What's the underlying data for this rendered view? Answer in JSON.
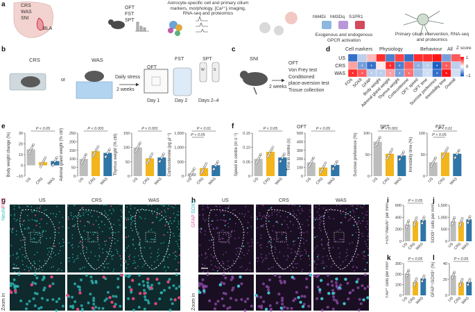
{
  "panel_a": {
    "regions": [
      "CRS",
      "WAS",
      "SNI",
      "BLA"
    ],
    "tests": [
      "OFT",
      "FST",
      "SPT"
    ],
    "mid_text": "Astrocyte-specific cell and primary cilium markers, morphology, [Ca²⁺]ᵢ imaging, RNA-seq and proteomics",
    "receptors": [
      "hM4Di",
      "hM3Dq",
      "S1PR1"
    ],
    "gpcr_text": "Exogenous and endogenous GPCR activation",
    "cilium_text": "Primary cilium intervention, RNA-seq and proteomics"
  },
  "panel_b": {
    "labels": [
      "CRS",
      "WAS",
      "or",
      "Daily stress",
      "2 weeks",
      "OFT",
      "FST",
      "SPT",
      "Day 1",
      "Day 2",
      "Days 2–4",
      "W",
      "S"
    ]
  },
  "panel_c": {
    "label": "SNI",
    "duration": "2 weeks",
    "tests": [
      "OFT",
      "Von Frey test",
      "Conditioned",
      "place-aversion test",
      "Tissue collection"
    ]
  },
  "panel_d": {
    "groups": [
      "Cell markers",
      "Physiology",
      "Behaviour",
      "All"
    ],
    "rows": [
      "US",
      "CRS",
      "WAS"
    ],
    "cols": [
      "FOS",
      "SOX9",
      "GFAP",
      "Body weight",
      "Adrenal gland weight",
      "Thymus weight",
      "Corticosterone",
      "OFT: speed",
      "OFT: time",
      "Sucrose preference",
      "Immobility time",
      "Overall"
    ],
    "scale_title": "Z score",
    "scale_ticks": [
      "1",
      "0",
      "–1"
    ],
    "values": [
      [
        -0.9,
        -0.3,
        0.3,
        0.9,
        -0.8,
        0.8,
        -0.9,
        0.9,
        0.9,
        1.0,
        -0.6,
        0.7
      ],
      [
        0.4,
        -0.6,
        -0.9,
        0.1,
        0.9,
        -0.8,
        0.7,
        -0.5,
        -0.3,
        -1.0,
        0.7,
        -0.3
      ],
      [
        0.9,
        0.7,
        -0.3,
        -0.3,
        0.4,
        -0.6,
        0.6,
        -0.4,
        -0.2,
        -0.9,
        1.0,
        -0.2
      ]
    ],
    "stars": [
      [
        false,
        false,
        false,
        false,
        false,
        false,
        false,
        false,
        false,
        false,
        false,
        false
      ],
      [
        false,
        true,
        true,
        true,
        true,
        true,
        false,
        true,
        true,
        true,
        true,
        false
      ],
      [
        true,
        true,
        true,
        true,
        true,
        true,
        true,
        false,
        true,
        true,
        true,
        false
      ]
    ]
  },
  "panel_e": {
    "charts": [
      {
        "ylabel": "Body weight change (%)",
        "ticks": [
          "30",
          "20",
          "10",
          "0",
          "–10"
        ],
        "p": "P < 0.05",
        "values": [
          15,
          3,
          4
        ],
        "ymax": 30,
        "ymin": -10
      },
      {
        "ylabel": "Adrenal gland weight (% ctrl)",
        "ticks": [
          "250",
          "200",
          "150",
          "100",
          "50",
          "0"
        ],
        "p": "P < 0.001",
        "values": [
          100,
          145,
          135
        ],
        "ymax": 250,
        "ymin": 0
      },
      {
        "ylabel": "Thymus weight (% ctrl)",
        "ticks": [
          "150",
          "100",
          "50",
          "0"
        ],
        "p": "P < 0.001",
        "values": [
          100,
          62,
          65
        ],
        "ymax": 150,
        "ymin": 0
      },
      {
        "ylabel": "Corticosterone (pg µl⁻¹)",
        "ticks": [
          "1,500",
          "1,000",
          "500",
          "0"
        ],
        "p": "P < 0.01",
        "p2": "P < 0.05",
        "values": [
          100,
          280,
          380
        ],
        "ymax": 1500,
        "ymin": 0
      }
    ],
    "groups": [
      "US",
      "CRS",
      "WAS"
    ]
  },
  "panel_f": {
    "title_oft": "OFT",
    "title_spt": "SPT",
    "title_fst": "FST",
    "charts": [
      {
        "ylabel": "Speed in centre (m s⁻¹)",
        "ticks": [
          "0.15",
          "0.10",
          "0.05",
          "0"
        ],
        "p": "P < 0.05",
        "values": [
          0.06,
          0.085,
          0.065
        ],
        "ymax": 0.15,
        "ymin": 0
      },
      {
        "ylabel": "Time in centre (s)",
        "ticks": [
          "500",
          "400",
          "300",
          "200",
          "100",
          "0"
        ],
        "p": "P < 0.05",
        "values": [
          160,
          100,
          130
        ],
        "ymax": 500,
        "ymin": 0
      },
      {
        "ylabel": "Sucrose preference (%)",
        "ticks": [
          "100",
          "50",
          "0"
        ],
        "p": "P < 0.001",
        "values": [
          80,
          52,
          48
        ],
        "ymax": 100,
        "ymin": 0
      },
      {
        "ylabel": "Immobility time (%)",
        "ticks": [
          "100",
          "50",
          "0"
        ],
        "p": "P < 0.01",
        "p2": "P < 0.05",
        "values": [
          32,
          55,
          52
        ],
        "ymax": 100,
        "ymin": 0
      }
    ],
    "groups": [
      "US",
      "CRS",
      "WAS"
    ]
  },
  "panel_g": {
    "cols": [
      "US",
      "CRS",
      "WAS"
    ],
    "stain1": "NeuN",
    "stain2": "FOS",
    "zoom": "Zoom in"
  },
  "panel_h": {
    "cols": [
      "US",
      "CRS",
      "WAS"
    ],
    "stain1": "GFAP",
    "stain2": "SOX9",
    "zoom": "Zoom in"
  },
  "panel_i": {
    "ylabel": "FOS⁺/NeuN⁺ per mm²",
    "ticks": [
      "600",
      "400",
      "200",
      "0"
    ],
    "p": "P < 0.05",
    "values": [
      280,
      330,
      355
    ],
    "ymax": 600
  },
  "panel_j": {
    "ylabel": "SOX9⁺ cells per mm²",
    "ticks": [
      "1,500",
      "1,000",
      "500",
      "0"
    ],
    "values": [
      830,
      800,
      910
    ],
    "ymax": 1500
  },
  "panel_k": {
    "ylabel": "FAP⁺ cells per mm²",
    "ticks": [
      "300",
      "200",
      "100",
      "0"
    ],
    "p": "P < 0.05",
    "values": [
      205,
      125,
      160
    ],
    "ymax": 300
  },
  "panel_l": {
    "ylabel": "GFAP⁺/SOX9⁺ (%)",
    "ticks": [
      "40",
      "20",
      "0"
    ],
    "p": "P < 0.05",
    "values": [
      25,
      16,
      17
    ],
    "ymax": 40
  },
  "colors": {
    "US": "#bdbdbd",
    "CRS": "#f2b51c",
    "WAS": "#2e75a8"
  },
  "panel_letters": [
    "a",
    "b",
    "c",
    "d",
    "e",
    "f",
    "g",
    "h",
    "i",
    "j",
    "k",
    "l"
  ]
}
